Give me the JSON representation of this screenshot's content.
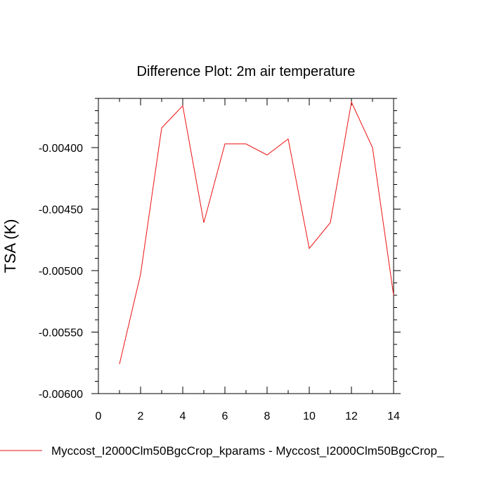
{
  "chart_data": {
    "type": "line",
    "title": "Difference Plot: 2m air temperature",
    "xlabel": "",
    "ylabel": "TSA  (K)",
    "xlim": [
      0,
      14
    ],
    "ylim": [
      -0.006,
      -0.0036
    ],
    "x_ticks": [
      0,
      2,
      4,
      6,
      8,
      10,
      12,
      14
    ],
    "x_tick_labels": [
      "0",
      "2",
      "4",
      "6",
      "8",
      "10",
      "12",
      "14"
    ],
    "y_ticks": [
      -0.006,
      -0.0055,
      -0.005,
      -0.0045,
      -0.004
    ],
    "y_tick_labels": [
      "-0.00600",
      "-0.00550",
      "-0.00500",
      "-0.00450",
      "-0.00400"
    ],
    "grid": false,
    "legend_position": "bottom",
    "series": [
      {
        "name": "Myccost_I2000Clm50BgcCrop_kparams - Myccost_I2000Clm50BgcCrop_",
        "color": "#ee1111",
        "x": [
          1,
          2,
          3,
          4,
          5,
          6,
          7,
          8,
          9,
          10,
          11,
          12,
          13,
          14
        ],
        "y": [
          -0.00576,
          -0.00503,
          -0.00384,
          -0.00366,
          -0.00461,
          -0.00397,
          -0.00397,
          -0.00406,
          -0.00393,
          -0.00482,
          -0.00461,
          -0.00363,
          -0.004,
          -0.0052
        ]
      }
    ]
  }
}
